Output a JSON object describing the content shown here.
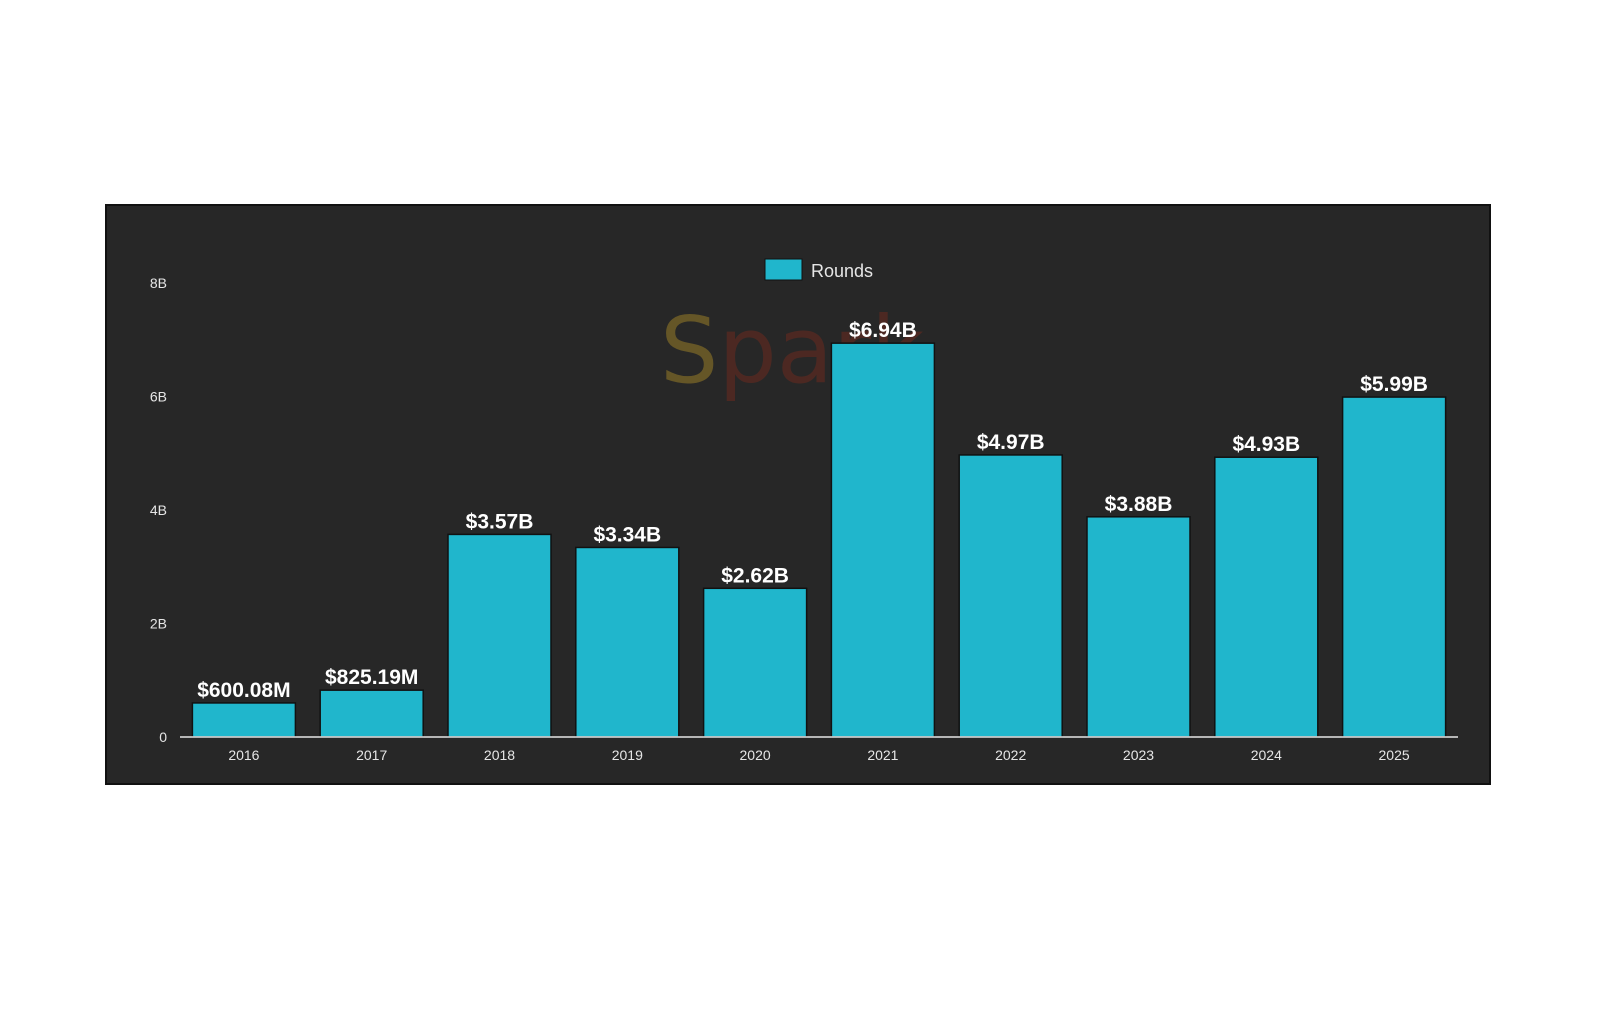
{
  "chart_data": {
    "type": "bar",
    "categories": [
      "2016",
      "2017",
      "2018",
      "2019",
      "2020",
      "2021",
      "2022",
      "2023",
      "2024",
      "2025"
    ],
    "series": [
      {
        "name": "Rounds",
        "color": "#20b6cc",
        "values": [
          600080000,
          825190000,
          3570000000,
          3340000000,
          2620000000,
          6940000000,
          4970000000,
          3880000000,
          4930000000,
          5990000000
        ],
        "labels": [
          "$600.08M",
          "$825.19M",
          "$3.57B",
          "$3.34B",
          "$2.62B",
          "$6.94B",
          "$4.97B",
          "$3.88B",
          "$4.93B",
          "$5.99B"
        ]
      }
    ],
    "yticks": [
      {
        "value": 0,
        "label": "0"
      },
      {
        "value": 2000000000,
        "label": "2B"
      },
      {
        "value": 4000000000,
        "label": "4B"
      },
      {
        "value": 6000000000,
        "label": "6B"
      },
      {
        "value": 8000000000,
        "label": "8B"
      }
    ],
    "ylim": [
      0,
      8000000000
    ],
    "title": "",
    "xlabel": "",
    "ylabel": "",
    "grid": false,
    "legend_position": "top-center",
    "background": "#272727"
  },
  "watermark": {
    "text": "Spark",
    "colors": {
      "logo": "#8a2b1c",
      "logo_gold": "#c9a227"
    }
  }
}
